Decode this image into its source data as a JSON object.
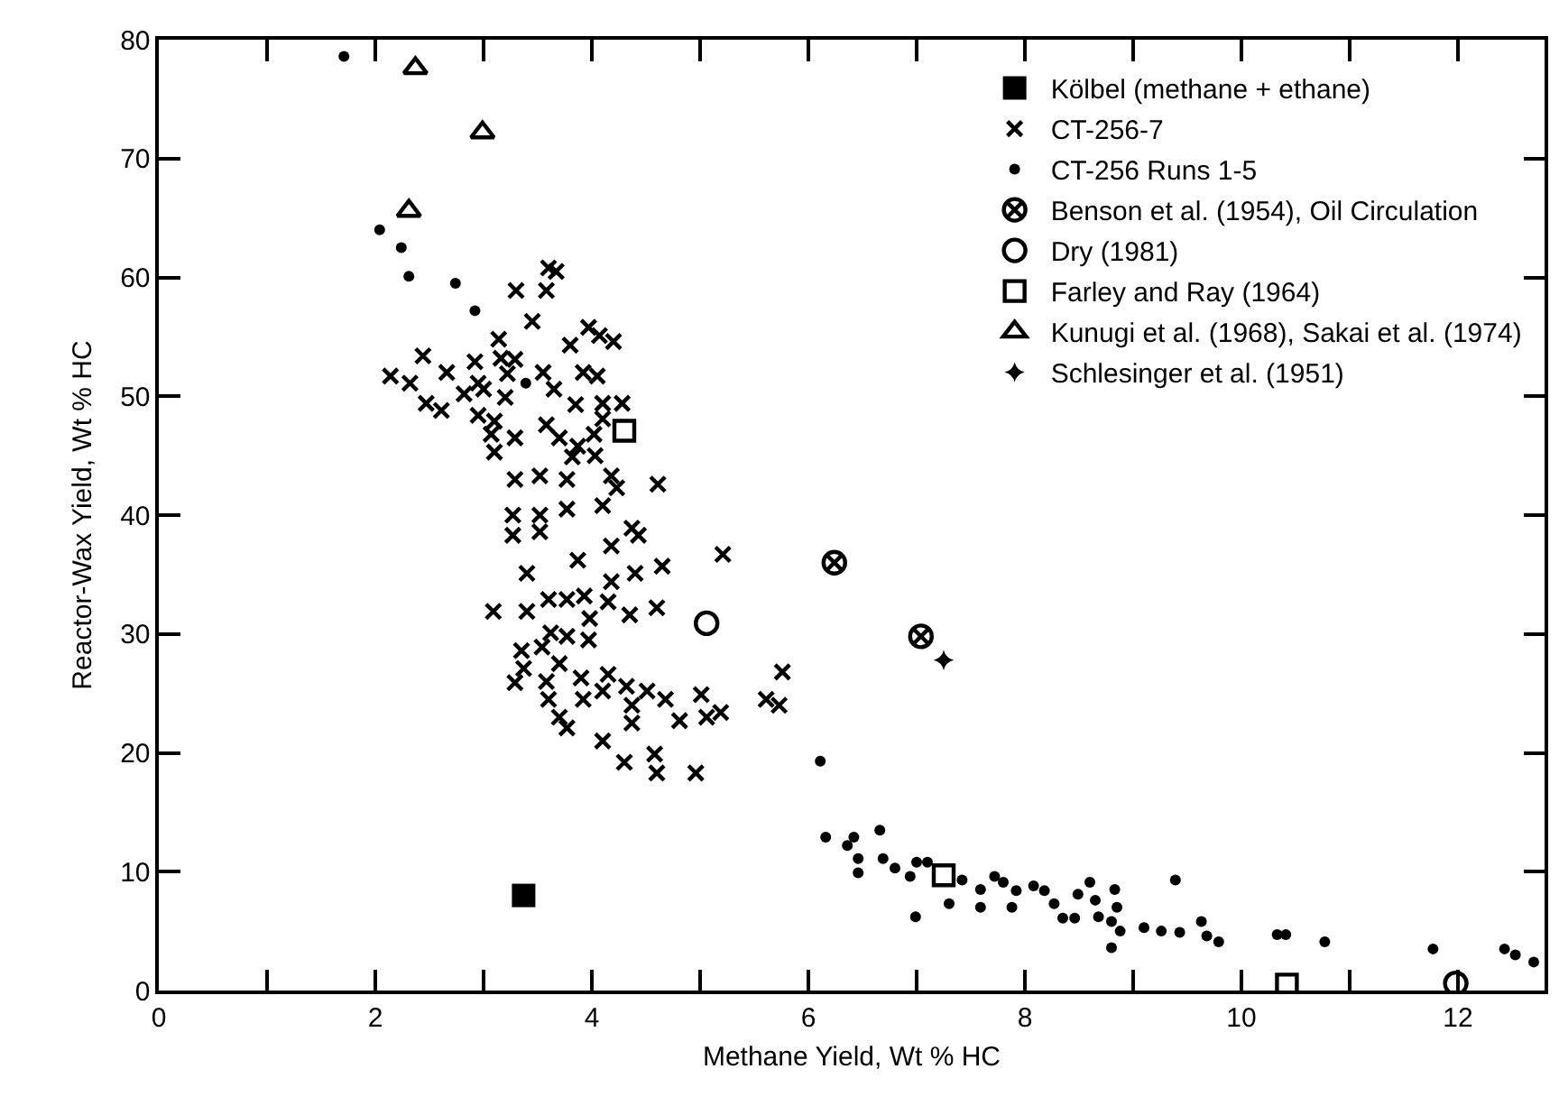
{
  "chart_data": {
    "type": "scatter",
    "xlabel": "Methane Yield, Wt % HC",
    "ylabel": "Reactor-Wax Yield, Wt % HC",
    "xlim": [
      0,
      12.8
    ],
    "ylim": [
      0,
      80
    ],
    "xticks": [
      0,
      {
        "value": 1,
        "label": null
      },
      2,
      {
        "value": 3,
        "label": null
      },
      4,
      {
        "value": 5,
        "label": null
      },
      6,
      {
        "value": 7,
        "label": null
      },
      8,
      {
        "value": 9,
        "label": null
      },
      10,
      {
        "value": 11,
        "label": null
      },
      12
    ],
    "yticks": [
      0,
      10,
      20,
      30,
      40,
      50,
      60,
      70,
      80
    ],
    "grid": false,
    "legend": "top right",
    "series": [
      {
        "name": "Kölbel (methane + ethane)",
        "color": "#000000",
        "marker": "square",
        "x": [
          3.37
        ],
        "values": [
          8.0
        ]
      },
      {
        "name": "CT-256-7",
        "color": "#000000",
        "marker": "x",
        "x": [
          3.6,
          3.67,
          3.3,
          3.58,
          3.45,
          3.97,
          4.07,
          4.2,
          3.14,
          3.8,
          2.44,
          2.92,
          3.16,
          3.29,
          2.14,
          2.32,
          2.66,
          2.95,
          3.22,
          3.55,
          3.92,
          4.05,
          2.47,
          2.61,
          2.82,
          3.0,
          2.95,
          3.1,
          3.2,
          3.65,
          3.85,
          4.1,
          4.28,
          4.1,
          3.07,
          3.29,
          3.1,
          3.58,
          3.7,
          4.02,
          3.87,
          3.82,
          4.03,
          3.29,
          3.52,
          3.77,
          4.18,
          4.23,
          4.61,
          3.27,
          3.52,
          3.77,
          4.1,
          4.37,
          3.27,
          3.52,
          4.43,
          3.4,
          3.87,
          4.18,
          4.18,
          4.4,
          4.65,
          5.21,
          3.09,
          3.4,
          3.6,
          3.77,
          3.93,
          4.15,
          4.35,
          4.6,
          3.98,
          3.62,
          3.77,
          3.97,
          3.35,
          3.54,
          3.7,
          3.37,
          3.29,
          3.58,
          3.9,
          4.15,
          4.1,
          4.32,
          4.51,
          4.68,
          4.37,
          3.6,
          3.92,
          3.7,
          3.77,
          4.37,
          4.81,
          5.01,
          5.06,
          5.19,
          4.1,
          4.3,
          4.58,
          4.6,
          4.96,
          5.61,
          5.76,
          5.73
        ],
        "values": [
          60.8,
          60.5,
          58.9,
          58.9,
          56.3,
          55.8,
          55.1,
          54.6,
          54.8,
          54.3,
          53.4,
          52.9,
          53.2,
          53.1,
          51.7,
          51.1,
          52.0,
          51.1,
          51.9,
          52.0,
          52.0,
          51.7,
          49.4,
          48.8,
          50.2,
          50.6,
          48.4,
          47.9,
          49.9,
          50.6,
          49.3,
          49.4,
          49.4,
          48.1,
          46.8,
          46.5,
          45.3,
          47.6,
          46.5,
          46.8,
          45.8,
          44.9,
          45.0,
          43.0,
          43.3,
          43.0,
          43.3,
          42.3,
          42.6,
          40.0,
          40.0,
          40.5,
          40.8,
          38.9,
          38.3,
          38.6,
          38.3,
          35.1,
          36.2,
          37.4,
          34.4,
          35.1,
          35.7,
          36.7,
          31.9,
          31.9,
          32.9,
          32.9,
          33.2,
          32.7,
          31.6,
          32.2,
          31.3,
          30.1,
          29.8,
          29.5,
          28.6,
          28.9,
          27.5,
          27.1,
          25.9,
          26.0,
          26.3,
          26.6,
          25.2,
          25.6,
          25.2,
          24.5,
          24.0,
          24.5,
          24.5,
          23.0,
          22.1,
          22.5,
          22.7,
          24.9,
          23.0,
          23.4,
          21.0,
          19.2,
          19.9,
          18.3,
          18.3,
          24.5,
          26.8,
          24.0
        ]
      },
      {
        "name": "CT-256 Runs 1-5",
        "color": "#000000",
        "marker": "circle",
        "x": [
          1.71,
          2.04,
          2.24,
          2.31,
          2.74,
          2.92,
          3.39,
          6.11,
          6.16,
          6.36,
          6.42,
          6.46,
          6.46,
          6.66,
          6.69,
          6.8,
          6.94,
          6.99,
          7.0,
          7.1,
          7.3,
          7.42,
          7.59,
          7.59,
          7.72,
          7.8,
          7.88,
          7.92,
          8.08,
          8.18,
          8.27,
          8.35,
          8.46,
          8.49,
          8.6,
          8.65,
          8.68,
          8.8,
          8.83,
          8.85,
          8.88,
          8.8,
          9.1,
          9.26,
          9.39,
          9.43,
          9.63,
          9.68,
          9.79,
          10.33,
          10.41,
          10.77,
          11.77,
          12.43,
          12.53,
          12.7
        ],
        "values": [
          78.6,
          64.0,
          62.5,
          60.1,
          59.5,
          57.2,
          51.1,
          19.3,
          12.9,
          12.2,
          12.9,
          11.1,
          9.9,
          13.5,
          11.1,
          10.3,
          9.6,
          6.2,
          10.8,
          10.8,
          7.3,
          9.3,
          8.5,
          7.0,
          9.6,
          9.1,
          7.0,
          8.4,
          8.8,
          8.4,
          7.3,
          6.1,
          6.1,
          8.1,
          9.1,
          7.6,
          6.2,
          5.8,
          8.5,
          7.0,
          5.0,
          3.6,
          5.3,
          5.0,
          9.3,
          4.9,
          5.8,
          4.6,
          4.1,
          4.7,
          4.7,
          4.1,
          3.5,
          3.5,
          3.0,
          2.4
        ]
      },
      {
        "name": "Benson et al. (1954), Oil Circulation",
        "color": "#000000",
        "marker": "cross",
        "x": [
          6.24,
          7.04
        ],
        "values": [
          36.0,
          29.8
        ]
      },
      {
        "name": "Dry (1981)",
        "color": "#000000",
        "marker": "circle-open",
        "x": [
          5.06,
          11.98
        ],
        "values": [
          30.9,
          0.6
        ]
      },
      {
        "name": "Farley and Ray (1964)",
        "color": "#000000",
        "marker": "square-open",
        "x": [
          4.3,
          7.25,
          10.42
        ],
        "values": [
          47.1,
          9.7,
          0.5
        ]
      },
      {
        "name": "Kunugi et al. (1968), Sakai et al. (1974)",
        "color": "#000000",
        "marker": "triangle-open",
        "x": [
          2.37,
          2.99,
          2.31
        ],
        "values": [
          77.6,
          72.2,
          65.6
        ]
      },
      {
        "name": "Schlesinger et al. (1951)",
        "color": "#000000",
        "marker": "star",
        "x": [
          7.25
        ],
        "values": [
          27.8
        ]
      }
    ]
  }
}
